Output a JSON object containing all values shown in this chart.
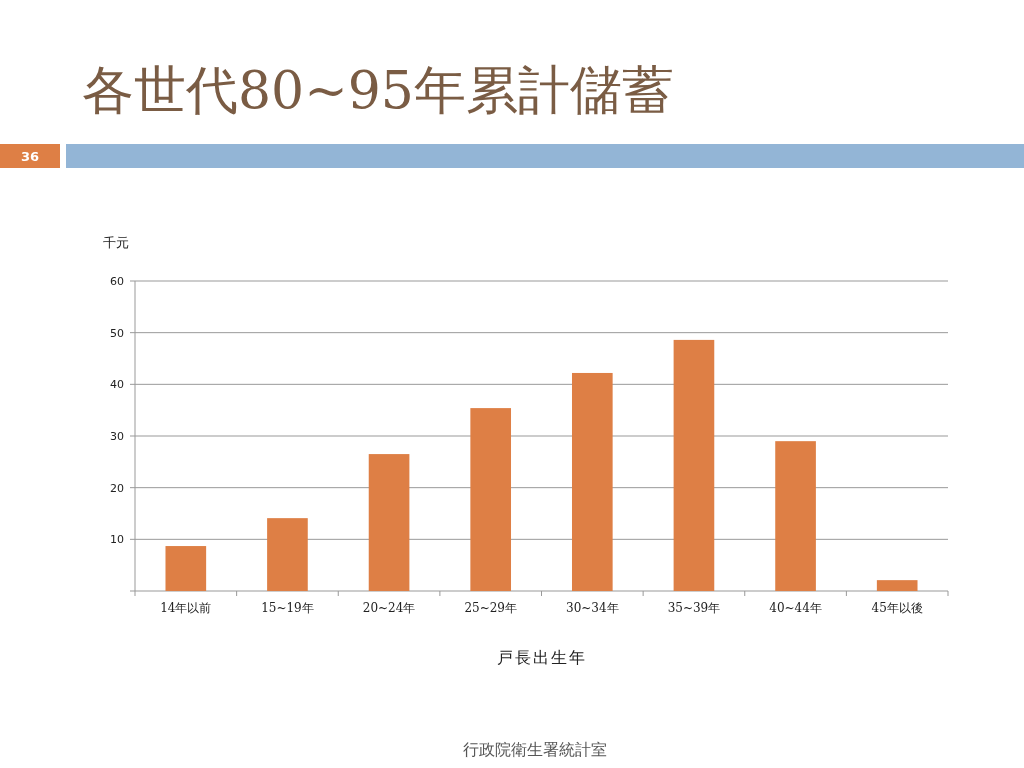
{
  "chart_data": {
    "type": "bar",
    "title": "各世代80~95年累計儲蓄",
    "ylabel": "千元",
    "xlabel": "戸長出生年",
    "categories": [
      "14年以前",
      "15~19年",
      "20~24年",
      "25~29年",
      "30~34年",
      "35~39年",
      "40~44年",
      "45年以後"
    ],
    "values": [
      8.7,
      14.1,
      26.5,
      35.4,
      42.2,
      48.6,
      29.0,
      2.1
    ],
    "color": "#de7f45",
    "ylim": [
      0,
      60
    ],
    "yticks": [
      {
        "value": 0,
        "label": null
      },
      10,
      20,
      30,
      40,
      50,
      60
    ],
    "grid": "y",
    "annotations": [
      "36",
      "行政院衛生署統計室"
    ]
  }
}
